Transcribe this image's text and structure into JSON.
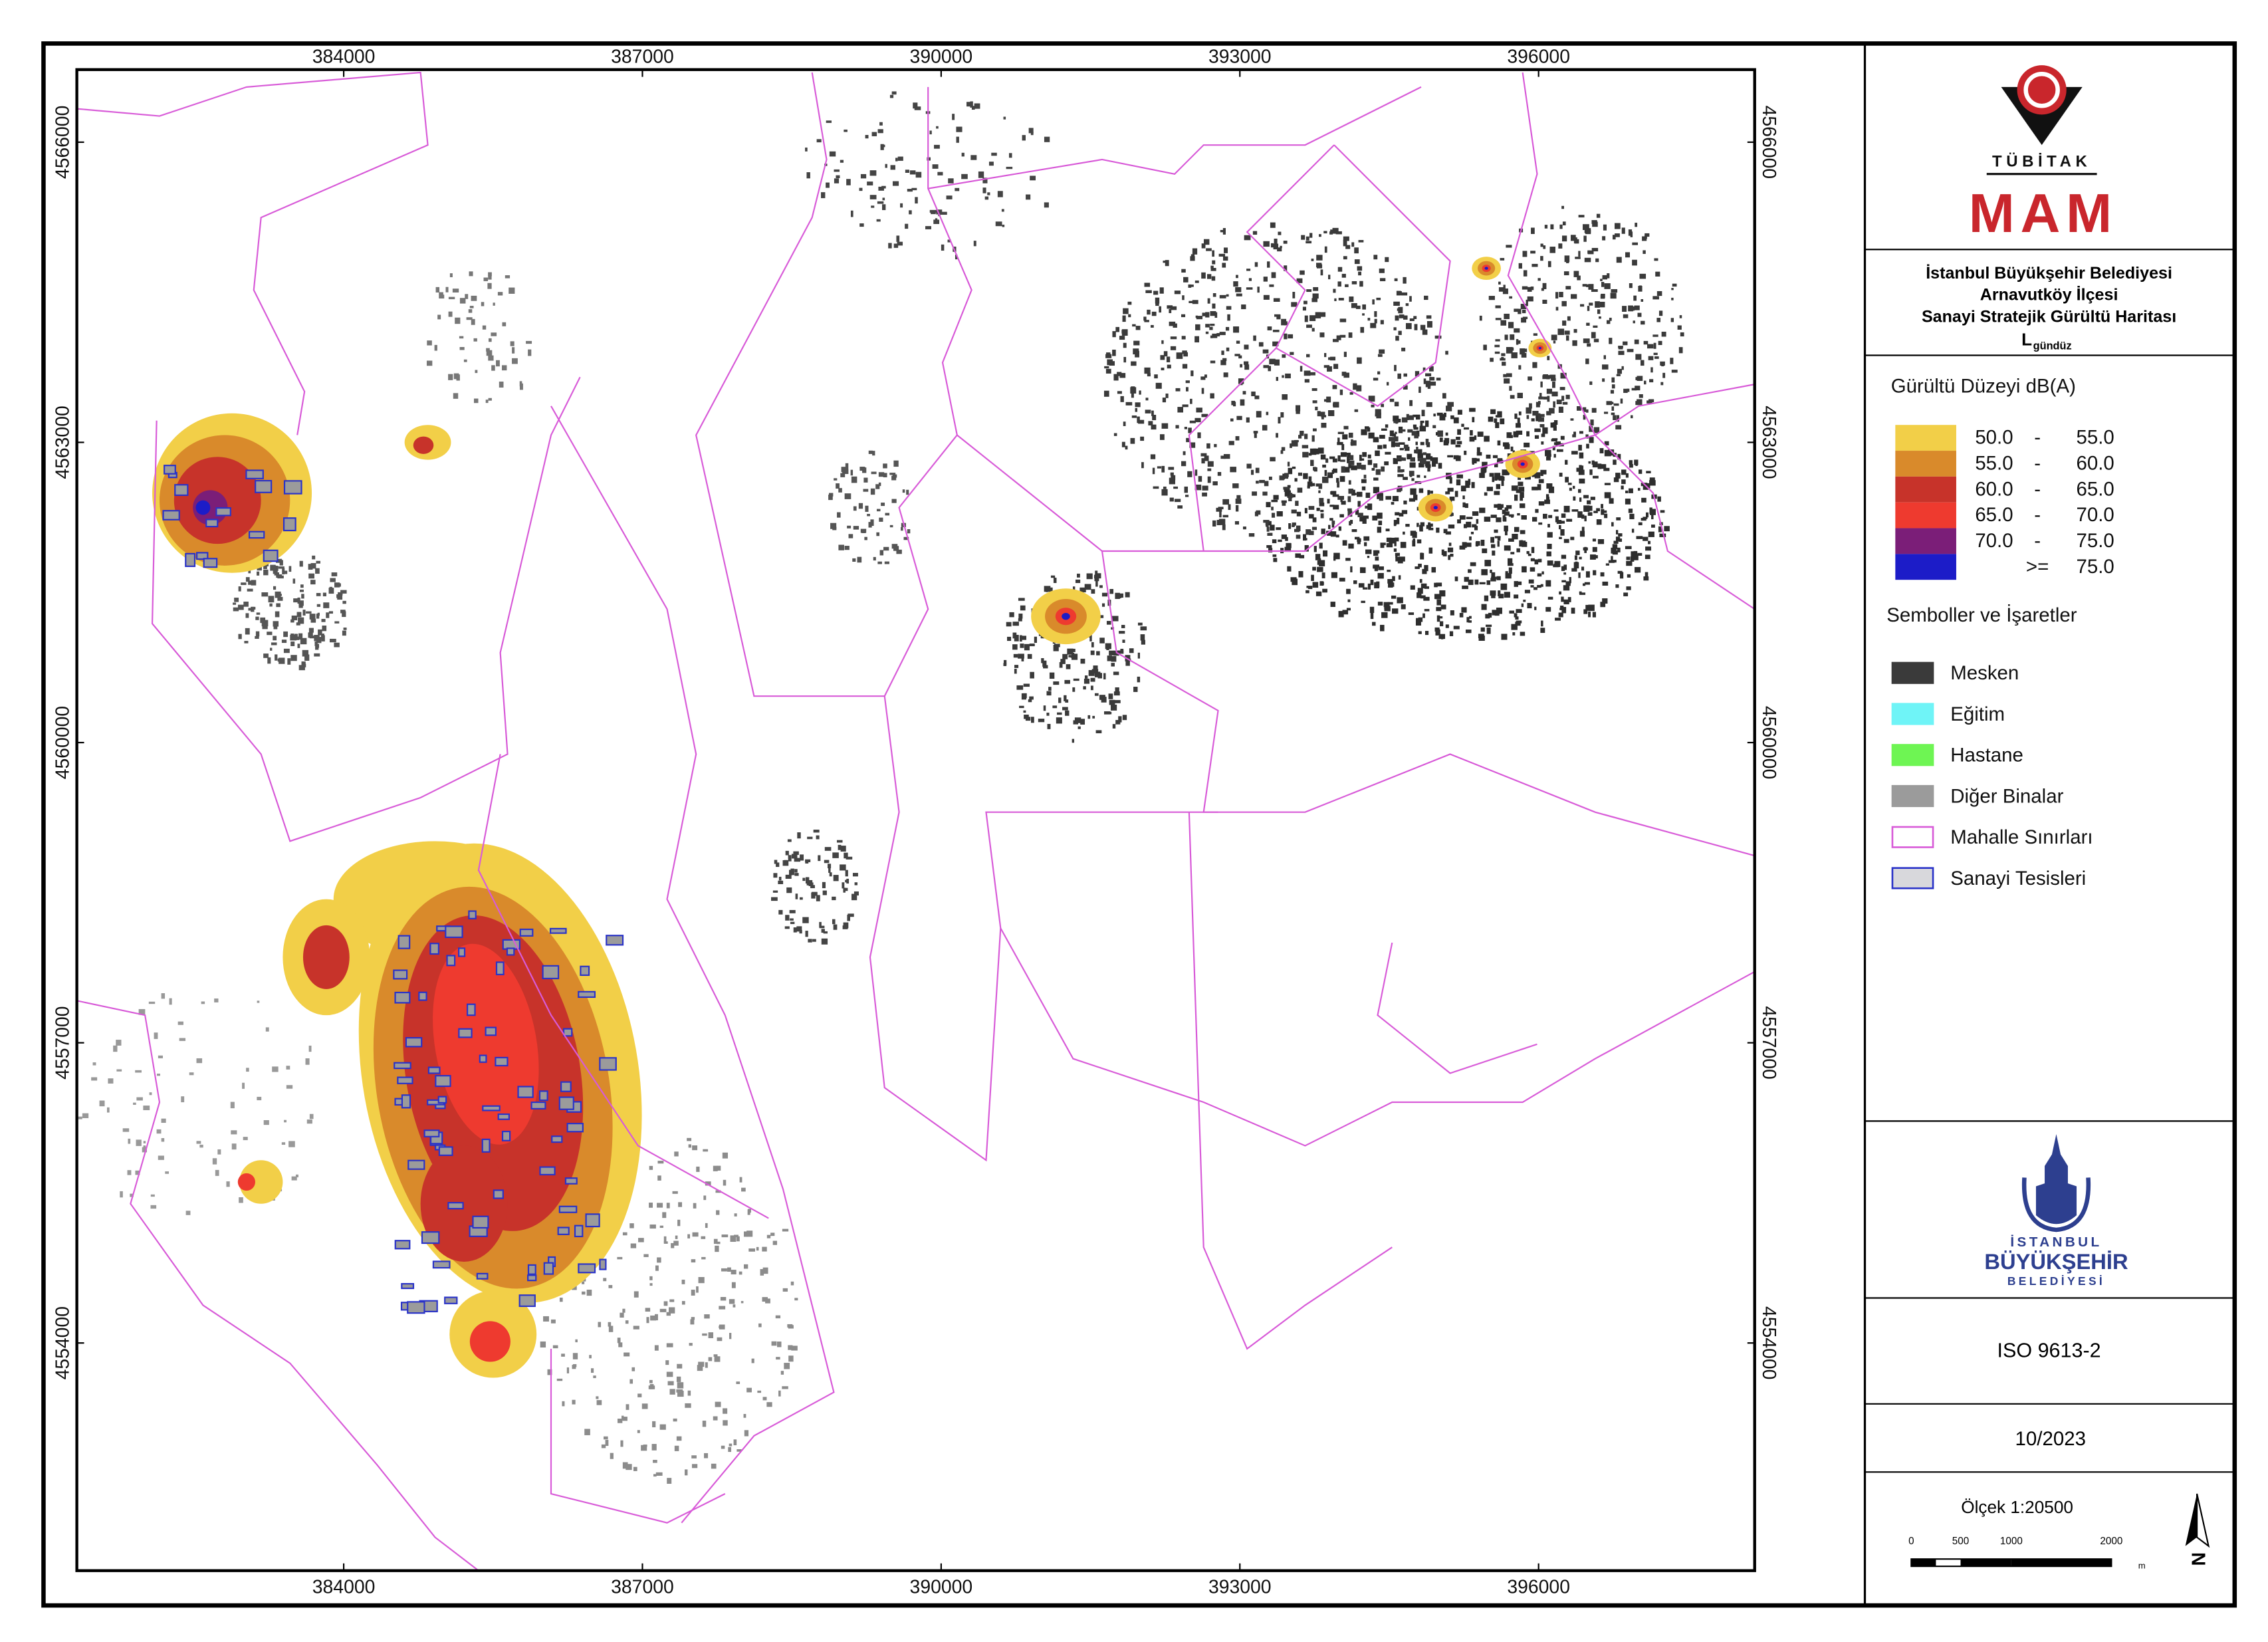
{
  "map": {
    "xlim": [
      381320,
      398170
    ],
    "ylim": [
      4551725,
      4566725
    ],
    "xticks": [
      384000,
      387000,
      390000,
      393000,
      396000
    ],
    "yticks": [
      4554000,
      4557000,
      4560000,
      4563000,
      4566000
    ]
  },
  "header": {
    "org": "TÜBİTAK",
    "unit": "MAM"
  },
  "title": {
    "lines": [
      "İstanbul Büyükşehir Belediyesi",
      "Arnavutköy İlçesi",
      "Sanayi Stratejik Gürültü Haritası"
    ],
    "metric": "L",
    "metric_sub": "gündüz"
  },
  "legend": {
    "noise_title": "Gürültü Düzeyi dB(A)",
    "noise": [
      {
        "color": "#f2cf48",
        "parts": [
          "50.0",
          "-",
          "55.0"
        ]
      },
      {
        "color": "#d98a2b",
        "parts": [
          "55.0",
          "-",
          "60.0"
        ]
      },
      {
        "color": "#c7332a",
        "parts": [
          "60.0",
          "-",
          "65.0"
        ]
      },
      {
        "color": "#ee3a2f",
        "parts": [
          "65.0",
          "-",
          "70.0"
        ]
      },
      {
        "color": "#7b1e78",
        "parts": [
          "70.0",
          "-",
          "75.0"
        ]
      },
      {
        "color": "#1c1cc8",
        "parts": [
          ">=",
          "75.0"
        ]
      }
    ],
    "symbols_title": "Semboller ve İşaretler",
    "symbols": [
      {
        "label": "Mesken",
        "fill": "#3a3a3a",
        "stroke": "#3a3a3a"
      },
      {
        "label": "Eğitim",
        "fill": "#6ff4f7",
        "stroke": "#6ff4f7"
      },
      {
        "label": "Hastane",
        "fill": "#6ef553",
        "stroke": "#6ef553"
      },
      {
        "label": "Diğer Binalar",
        "fill": "#9b9b9b",
        "stroke": "#9b9b9b"
      },
      {
        "label": "Mahalle Sınırları",
        "fill": "#ffffff",
        "stroke": "#d85bd8"
      },
      {
        "label": "Sanayi Tesisleri",
        "fill": "#d8d8dc",
        "stroke": "#2a33c8"
      }
    ]
  },
  "ibb": {
    "line1": "İSTANBUL",
    "line2": "BÜYÜKŞEHİR",
    "line3": "BELEDİYESİ"
  },
  "standard": "ISO 9613-2",
  "date": "10/2023",
  "scale": {
    "label": "Ölçek 1:20500",
    "ticks": [
      "0",
      "500",
      "1000",
      "2000"
    ],
    "unit": "m",
    "north": "N"
  }
}
